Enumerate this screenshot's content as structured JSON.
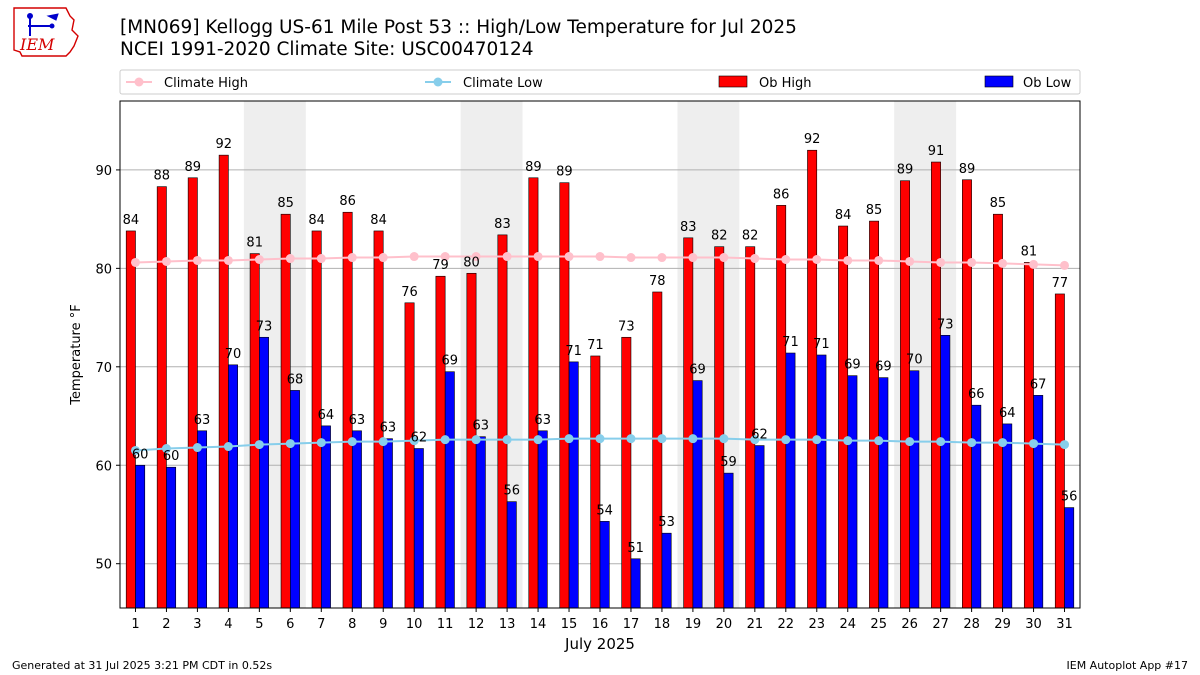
{
  "header": {
    "logo_text": "IEM",
    "title": "[MN069] Kellogg US-61 Mile Post 53 :: High/Low Temperature for Jul 2025",
    "subtitle": "NCEI 1991-2020 Climate Site: USC00470124"
  },
  "footer": {
    "generated": "Generated at 31 Jul 2025 3:21 PM CDT in 0.52s",
    "app": "IEM Autoplot App #17"
  },
  "colors": {
    "ob_high": "#ff0000",
    "ob_low": "#0000ff",
    "climate_high": "#ffc0cb",
    "climate_low": "#87ceeb",
    "weekend_shade": "#eeeeee",
    "grid": "#b0b0b0",
    "logo": "#d40000"
  },
  "chart_data": {
    "type": "bar",
    "xlabel": "July 2025",
    "ylabel": "Temperature °F",
    "ylim": [
      45.5,
      97
    ],
    "yticks": [
      50,
      60,
      70,
      80,
      90
    ],
    "grid": "horizontal",
    "legend_position": "top",
    "categories": [
      "1",
      "2",
      "3",
      "4",
      "5",
      "6",
      "7",
      "8",
      "9",
      "10",
      "11",
      "12",
      "13",
      "14",
      "15",
      "16",
      "17",
      "18",
      "19",
      "20",
      "21",
      "22",
      "23",
      "24",
      "25",
      "26",
      "27",
      "28",
      "29",
      "30",
      "31"
    ],
    "shaded_days": [
      [
        5,
        6
      ],
      [
        12,
        13
      ],
      [
        19,
        20
      ],
      [
        26,
        27
      ]
    ],
    "series": [
      {
        "name": "Ob High",
        "kind": "bar",
        "values": [
          83.8,
          88.3,
          89.2,
          91.5,
          81.5,
          85.5,
          83.8,
          85.7,
          83.8,
          76.5,
          79.2,
          79.5,
          83.4,
          89.2,
          88.7,
          71.1,
          73,
          77.6,
          83.1,
          82.2,
          82.2,
          86.4,
          92,
          84.3,
          84.8,
          88.9,
          90.8,
          89,
          85.5,
          80.6,
          77.4
        ],
        "labels": [
          "84",
          "88",
          "89",
          "92",
          "81",
          "85",
          "84",
          "86",
          "84",
          "76",
          "79",
          "80",
          "83",
          "89",
          "89",
          "71",
          "73",
          "78",
          "83",
          "82",
          "82",
          "86",
          "92",
          "84",
          "85",
          "89",
          "91",
          "89",
          "85",
          "81",
          "77"
        ]
      },
      {
        "name": "Ob Low",
        "kind": "bar",
        "values": [
          60,
          59.8,
          63.5,
          70.2,
          73,
          67.6,
          64,
          63.5,
          62.7,
          61.7,
          69.5,
          62.9,
          56.3,
          63.5,
          70.5,
          54.3,
          50.5,
          53.1,
          68.6,
          59.2,
          62,
          71.4,
          71.2,
          69.1,
          68.9,
          69.6,
          73.2,
          66.1,
          64.2,
          67.1,
          55.7
        ],
        "labels": [
          "60",
          "60",
          "63",
          "70",
          "73",
          "68",
          "64",
          "63",
          "63",
          "62",
          "69",
          "63",
          "56",
          "63",
          "71",
          "54",
          "51",
          "53",
          "69",
          "59",
          "62",
          "71",
          "71",
          "69",
          "69",
          "70",
          "73",
          "66",
          "64",
          "67",
          "56"
        ]
      },
      {
        "name": "Climate High",
        "kind": "line",
        "values": [
          80.6,
          80.7,
          80.8,
          80.8,
          80.9,
          81,
          81,
          81.1,
          81.1,
          81.2,
          81.2,
          81.2,
          81.2,
          81.2,
          81.2,
          81.2,
          81.1,
          81.1,
          81.1,
          81.1,
          81,
          80.9,
          80.9,
          80.8,
          80.8,
          80.7,
          80.6,
          80.6,
          80.5,
          80.4,
          80.3
        ]
      },
      {
        "name": "Climate Low",
        "kind": "line",
        "values": [
          61.5,
          61.7,
          61.8,
          61.9,
          62.1,
          62.2,
          62.3,
          62.4,
          62.4,
          62.5,
          62.6,
          62.6,
          62.6,
          62.6,
          62.7,
          62.7,
          62.7,
          62.7,
          62.7,
          62.7,
          62.6,
          62.6,
          62.6,
          62.5,
          62.5,
          62.4,
          62.4,
          62.3,
          62.3,
          62.2,
          62.1
        ]
      }
    ]
  }
}
